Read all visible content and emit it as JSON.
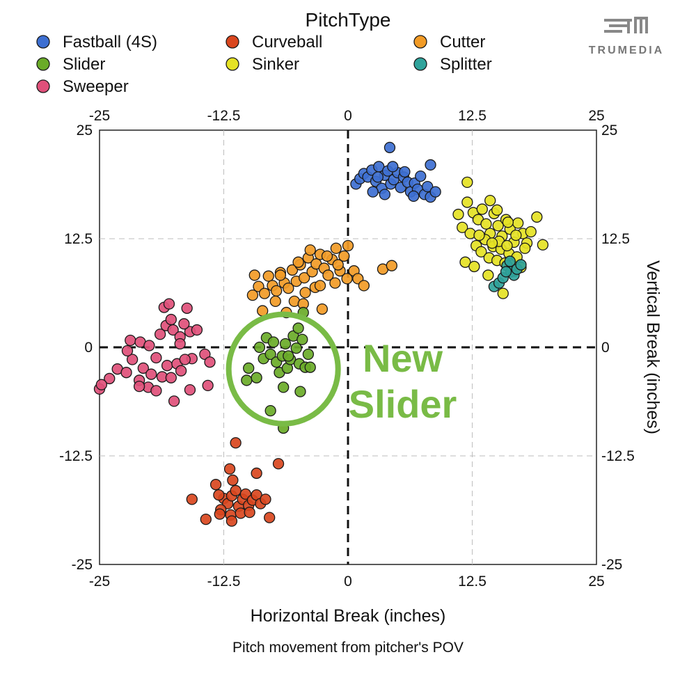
{
  "brand": {
    "name": "TRUMEDIA",
    "logo_icon": "trumedia-logo-icon"
  },
  "chart_data": {
    "type": "scatter",
    "title": "",
    "legend": {
      "title": "PitchType",
      "placement": "top"
    },
    "xlabel": "Horizontal Break (inches)",
    "ylabel": "Vertical Break (inches)",
    "caption": "Pitch movement from pitcher's POV",
    "xlim": [
      -25,
      25
    ],
    "ylim": [
      -25,
      25
    ],
    "xticks": [
      "-25",
      "-12.5",
      "0",
      "12.5",
      "25"
    ],
    "yticks": [
      "25",
      "12.5",
      "0",
      "-12.5",
      "-25"
    ],
    "grid": true,
    "zero_lines": "dashed",
    "annotation": {
      "text_line1": "New",
      "text_line2": "Slider",
      "circle_center": [
        -6.5,
        -2.5
      ],
      "circle_radius": 5.5,
      "text_position": [
        5.5,
        -6
      ]
    },
    "series": [
      {
        "name": "Fastball (4S)",
        "color": "#3d6fd1",
        "points": [
          [
            0.8,
            18.8
          ],
          [
            1.2,
            19.4
          ],
          [
            1.6,
            20.0
          ],
          [
            2.0,
            19.6
          ],
          [
            2.4,
            20.4
          ],
          [
            2.8,
            19.1
          ],
          [
            3.1,
            20.8
          ],
          [
            3.4,
            18.3
          ],
          [
            3.7,
            19.8
          ],
          [
            4.0,
            20.3
          ],
          [
            4.3,
            18.8
          ],
          [
            4.6,
            19.3
          ],
          [
            5.0,
            20.1
          ],
          [
            5.3,
            18.4
          ],
          [
            5.6,
            19.6
          ],
          [
            6.0,
            19.0
          ],
          [
            6.3,
            17.9
          ],
          [
            6.7,
            18.9
          ],
          [
            7.0,
            18.2
          ],
          [
            7.3,
            19.7
          ],
          [
            7.7,
            17.6
          ],
          [
            8.0,
            18.5
          ],
          [
            8.3,
            17.3
          ],
          [
            8.8,
            17.9
          ],
          [
            2.5,
            17.9
          ],
          [
            3.0,
            19.6
          ],
          [
            4.5,
            20.8
          ],
          [
            5.7,
            20.2
          ],
          [
            4.2,
            23.0
          ],
          [
            8.3,
            21.0
          ],
          [
            6.6,
            17.4
          ],
          [
            3.7,
            17.6
          ]
        ]
      },
      {
        "name": "Curveball",
        "color": "#d9461e",
        "points": [
          [
            -13.3,
            -15.8
          ],
          [
            -12.5,
            -17.4
          ],
          [
            -12.1,
            -18.0
          ],
          [
            -11.7,
            -17.1
          ],
          [
            -11.3,
            -16.5
          ],
          [
            -11.0,
            -18.3
          ],
          [
            -10.6,
            -17.5
          ],
          [
            -10.3,
            -16.9
          ],
          [
            -10.0,
            -18.2
          ],
          [
            -9.6,
            -17.6
          ],
          [
            -9.2,
            -17.0
          ],
          [
            -8.8,
            -18.0
          ],
          [
            -8.3,
            -17.5
          ],
          [
            -12.8,
            -18.7
          ],
          [
            -11.8,
            -19.3
          ],
          [
            -10.8,
            -19.1
          ],
          [
            -9.9,
            -19.0
          ],
          [
            -11.6,
            -15.3
          ],
          [
            -11.9,
            -14.0
          ],
          [
            -15.7,
            -17.5
          ],
          [
            -14.3,
            -19.8
          ],
          [
            -12.9,
            -19.2
          ],
          [
            -11.3,
            -11.0
          ],
          [
            -9.2,
            -14.5
          ],
          [
            -7.0,
            -13.4
          ],
          [
            -7.9,
            -19.6
          ],
          [
            -11.7,
            -20.0
          ],
          [
            -13.0,
            -17.0
          ]
        ]
      },
      {
        "name": "Cutter",
        "color": "#f29b26",
        "points": [
          [
            -9.6,
            6.0
          ],
          [
            -9.0,
            7.0
          ],
          [
            -8.4,
            6.2
          ],
          [
            -8.0,
            8.2
          ],
          [
            -7.6,
            7.1
          ],
          [
            -7.2,
            6.5
          ],
          [
            -6.8,
            8.6
          ],
          [
            -6.4,
            7.4
          ],
          [
            -6.0,
            6.8
          ],
          [
            -5.6,
            8.9
          ],
          [
            -5.2,
            7.6
          ],
          [
            -4.8,
            9.5
          ],
          [
            -4.4,
            8.0
          ],
          [
            -4.0,
            10.3
          ],
          [
            -3.6,
            8.7
          ],
          [
            -3.2,
            9.6
          ],
          [
            -2.8,
            10.7
          ],
          [
            -2.4,
            9.1
          ],
          [
            -2.0,
            8.3
          ],
          [
            -1.6,
            10.1
          ],
          [
            -1.2,
            11.4
          ],
          [
            -0.8,
            8.8
          ],
          [
            -0.4,
            10.5
          ],
          [
            0.0,
            11.7
          ],
          [
            0.6,
            8.8
          ],
          [
            1.0,
            7.9
          ],
          [
            1.6,
            7.1
          ],
          [
            -9.4,
            8.3
          ],
          [
            -7.3,
            5.3
          ],
          [
            -5.4,
            5.3
          ],
          [
            -4.3,
            6.3
          ],
          [
            -3.3,
            6.9
          ],
          [
            -2.6,
            4.4
          ],
          [
            -5.0,
            9.8
          ],
          [
            -3.8,
            11.2
          ],
          [
            -2.1,
            10.5
          ],
          [
            -8.6,
            4.2
          ],
          [
            -6.2,
            4.0
          ],
          [
            -1.3,
            7.4
          ],
          [
            3.5,
            9.0
          ],
          [
            4.4,
            9.4
          ],
          [
            -2.8,
            7.1
          ],
          [
            -0.1,
            7.9
          ],
          [
            -6.8,
            8.3
          ],
          [
            -1.0,
            9.5
          ],
          [
            -4.5,
            5.0
          ]
        ]
      },
      {
        "name": "Slider",
        "color": "#6aab28",
        "points": [
          [
            -8.9,
            0.0
          ],
          [
            -8.5,
            -1.3
          ],
          [
            -8.2,
            1.1
          ],
          [
            -7.8,
            -0.8
          ],
          [
            -7.5,
            0.6
          ],
          [
            -7.2,
            -1.7
          ],
          [
            -6.9,
            -2.9
          ],
          [
            -6.6,
            -1.0
          ],
          [
            -6.3,
            0.4
          ],
          [
            -6.1,
            -2.4
          ],
          [
            -5.8,
            -1.4
          ],
          [
            -5.5,
            1.3
          ],
          [
            -5.2,
            -0.1
          ],
          [
            -4.9,
            -1.9
          ],
          [
            -4.6,
            0.9
          ],
          [
            -10.0,
            -2.4
          ],
          [
            -10.2,
            -3.8
          ],
          [
            -9.2,
            -3.5
          ],
          [
            -4.3,
            -2.3
          ],
          [
            -4.0,
            -0.8
          ],
          [
            -6.5,
            -4.6
          ],
          [
            -4.8,
            -5.1
          ],
          [
            -6.5,
            -9.3
          ],
          [
            -7.8,
            -7.3
          ],
          [
            -6.0,
            -1.0
          ],
          [
            -5.0,
            2.2
          ],
          [
            -4.5,
            4.0
          ],
          [
            -3.8,
            -2.3
          ]
        ]
      },
      {
        "name": "Sinker",
        "color": "#e5e224",
        "points": [
          [
            12.0,
            16.7
          ],
          [
            12.6,
            15.5
          ],
          [
            13.1,
            14.7
          ],
          [
            13.5,
            15.9
          ],
          [
            13.9,
            14.2
          ],
          [
            14.3,
            13.1
          ],
          [
            14.7,
            15.4
          ],
          [
            15.1,
            14.0
          ],
          [
            15.5,
            12.8
          ],
          [
            15.9,
            14.7
          ],
          [
            16.3,
            13.6
          ],
          [
            16.7,
            12.1
          ],
          [
            17.1,
            14.3
          ],
          [
            17.6,
            13.1
          ],
          [
            18.0,
            12.0
          ],
          [
            18.4,
            13.3
          ],
          [
            12.9,
            11.7
          ],
          [
            13.4,
            11.0
          ],
          [
            13.8,
            12.4
          ],
          [
            14.2,
            10.3
          ],
          [
            14.6,
            11.6
          ],
          [
            15.0,
            10.0
          ],
          [
            15.4,
            11.3
          ],
          [
            15.8,
            9.7
          ],
          [
            16.2,
            10.8
          ],
          [
            16.6,
            9.5
          ],
          [
            17.0,
            10.4
          ],
          [
            17.4,
            9.2
          ],
          [
            11.5,
            13.8
          ],
          [
            12.3,
            13.1
          ],
          [
            11.8,
            9.8
          ],
          [
            12.7,
            9.3
          ],
          [
            14.3,
            16.9
          ],
          [
            16.1,
            14.4
          ],
          [
            16.9,
            12.9
          ],
          [
            19.0,
            15.0
          ],
          [
            19.6,
            11.8
          ],
          [
            12.0,
            19.0
          ],
          [
            15.6,
            6.2
          ],
          [
            14.1,
            8.3
          ],
          [
            16.8,
            8.8
          ],
          [
            13.2,
            12.9
          ],
          [
            15.2,
            12.2
          ],
          [
            17.8,
            11.4
          ],
          [
            14.5,
            12.0
          ],
          [
            11.1,
            15.3
          ],
          [
            15.0,
            15.8
          ],
          [
            16.0,
            11.7
          ]
        ]
      },
      {
        "name": "Splitter",
        "color": "#2fa39b",
        "points": [
          [
            14.7,
            7.0
          ],
          [
            15.2,
            7.4
          ],
          [
            15.6,
            8.0
          ],
          [
            16.0,
            9.4
          ],
          [
            16.4,
            8.7
          ],
          [
            16.7,
            8.3
          ],
          [
            17.0,
            9.0
          ],
          [
            16.3,
            9.9
          ],
          [
            15.9,
            8.7
          ],
          [
            17.4,
            9.5
          ]
        ]
      },
      {
        "name": "Sweeper",
        "color": "#e0507a",
        "points": [
          [
            -25.0,
            -4.8
          ],
          [
            -24.0,
            -3.6
          ],
          [
            -23.2,
            -2.5
          ],
          [
            -22.3,
            -2.9
          ],
          [
            -21.7,
            -1.4
          ],
          [
            -21.0,
            -3.8
          ],
          [
            -20.6,
            -2.4
          ],
          [
            -20.1,
            -4.6
          ],
          [
            -19.8,
            -3.1
          ],
          [
            -19.3,
            -1.2
          ],
          [
            -18.7,
            -3.4
          ],
          [
            -18.2,
            -2.1
          ],
          [
            -17.8,
            -3.5
          ],
          [
            -17.2,
            -1.9
          ],
          [
            -16.8,
            -2.7
          ],
          [
            -15.7,
            -1.3
          ],
          [
            -14.4,
            -0.8
          ],
          [
            -13.9,
            -1.7
          ],
          [
            -21.9,
            0.8
          ],
          [
            -20.9,
            0.6
          ],
          [
            -20.0,
            0.2
          ],
          [
            -18.9,
            1.5
          ],
          [
            -18.3,
            2.5
          ],
          [
            -17.6,
            2.0
          ],
          [
            -16.9,
            1.2
          ],
          [
            -15.9,
            1.8
          ],
          [
            -18.5,
            4.6
          ],
          [
            -17.8,
            3.2
          ],
          [
            -16.5,
            2.7
          ],
          [
            -15.2,
            2.0
          ],
          [
            -16.2,
            4.5
          ],
          [
            -18.0,
            5.0
          ],
          [
            -16.9,
            0.4
          ],
          [
            -19.3,
            -5.0
          ],
          [
            -17.5,
            -6.2
          ],
          [
            -15.9,
            -4.9
          ],
          [
            -14.1,
            -4.4
          ],
          [
            -21.0,
            -4.5
          ],
          [
            -22.2,
            -0.4
          ],
          [
            -24.8,
            -4.3
          ],
          [
            -16.4,
            -1.4
          ]
        ]
      }
    ]
  }
}
